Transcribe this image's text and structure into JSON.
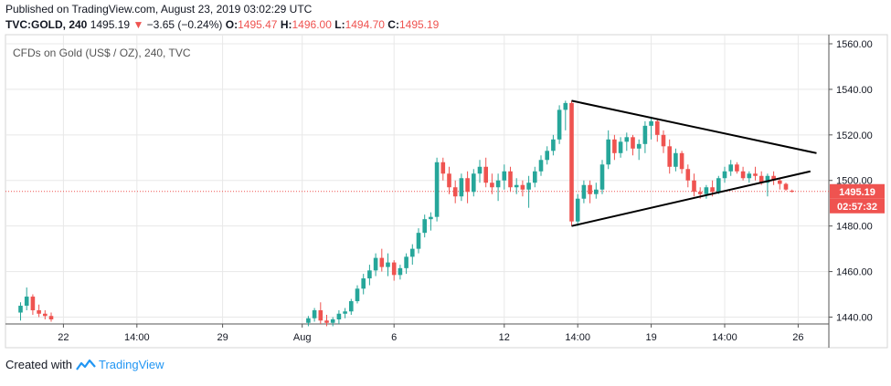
{
  "header": {
    "published": "Published on TradingView.com, August 23, 2019 03:02:29 UTC",
    "symbol": "TVC:GOLD, 240",
    "last": "1495.19",
    "arrow": "▼",
    "change": "−3.65 (−0.24%)",
    "o_label": "O:",
    "o_value": "1495.47",
    "h_label": "H:",
    "h_value": "1496.00",
    "l_label": "L:",
    "l_value": "1494.70",
    "c_label": "C:",
    "c_value": "1495.19"
  },
  "footer": {
    "created_with": "Created with",
    "brand": "TradingView"
  },
  "colors": {
    "up": "#26a69a",
    "down": "#ef5350",
    "grid": "#e8e8e8",
    "price_label": "#ef5350",
    "countdown_label": "#ef5350",
    "trendline": "#000000"
  },
  "chart_data": {
    "type": "candlestick",
    "title": "CFDs on Gold (US$ / OZ), 240, TVC",
    "ylim": [
      1437,
      1564
    ],
    "y_ticks": [
      1440,
      1460,
      1480,
      1500,
      1520,
      1540,
      1560
    ],
    "y_tick_labels": [
      "1440.00",
      "1460.00",
      "1480.00",
      "1500.00",
      "1520.00",
      "1540.00",
      "1560.00"
    ],
    "x_ticks": [
      {
        "label": "22",
        "bar": 7
      },
      {
        "label": "14:00",
        "bar": 19
      },
      {
        "label": "29",
        "bar": 33
      },
      {
        "label": "Aug",
        "bar": 46
      },
      {
        "label": "6",
        "bar": 61
      },
      {
        "label": "12",
        "bar": 79
      },
      {
        "label": "14:00",
        "bar": 91
      },
      {
        "label": "19",
        "bar": 103
      },
      {
        "label": "14:00",
        "bar": 115
      },
      {
        "label": "26",
        "bar": 127
      }
    ],
    "bar_count": 132,
    "last_price": "1495.19",
    "countdown": "02:57:32",
    "candles": [
      [
        0,
        1442.0,
        1446.5,
        1438.5,
        1445.0
      ],
      [
        1,
        1445.0,
        1453.0,
        1443.0,
        1449.0
      ],
      [
        2,
        1449.0,
        1450.0,
        1441.0,
        1443.0
      ],
      [
        3,
        1443.0,
        1445.5,
        1440.0,
        1441.5
      ],
      [
        4,
        1441.5,
        1443.0,
        1439.0,
        1440.5
      ],
      [
        5,
        1440.5,
        1442.0,
        1438.0,
        1439.0
      ],
      [
        47,
        1437.5,
        1440.5,
        1436.0,
        1439.5
      ],
      [
        48,
        1439.5,
        1444.0,
        1438.0,
        1443.0
      ],
      [
        49,
        1443.0,
        1446.5,
        1437.0,
        1438.5
      ],
      [
        50,
        1438.5,
        1441.0,
        1436.0,
        1437.5
      ],
      [
        51,
        1437.5,
        1440.0,
        1436.0,
        1439.0
      ],
      [
        52,
        1439.0,
        1443.0,
        1437.0,
        1441.5
      ],
      [
        53,
        1441.5,
        1444.0,
        1439.5,
        1442.5
      ],
      [
        54,
        1442.5,
        1448.0,
        1441.0,
        1447.0
      ],
      [
        55,
        1447.0,
        1454.0,
        1446.0,
        1452.5
      ],
      [
        56,
        1452.5,
        1459.0,
        1450.0,
        1457.0
      ],
      [
        57,
        1457.0,
        1463.0,
        1454.0,
        1460.5
      ],
      [
        58,
        1460.5,
        1468.0,
        1458.0,
        1466.0
      ],
      [
        59,
        1466.0,
        1470.0,
        1460.0,
        1462.0
      ],
      [
        60,
        1462.0,
        1468.0,
        1458.0,
        1464.0
      ],
      [
        61,
        1464.0,
        1465.0,
        1456.0,
        1458.5
      ],
      [
        62,
        1458.5,
        1463.0,
        1456.5,
        1461.5
      ],
      [
        63,
        1461.5,
        1468.0,
        1459.0,
        1466.5
      ],
      [
        64,
        1466.5,
        1472.0,
        1463.0,
        1470.0
      ],
      [
        65,
        1470.0,
        1479.0,
        1468.0,
        1477.0
      ],
      [
        66,
        1477.0,
        1485.0,
        1475.0,
        1483.0
      ],
      [
        67,
        1483.0,
        1486.0,
        1478.0,
        1484.0
      ],
      [
        68,
        1484.0,
        1510.0,
        1482.0,
        1508.0
      ],
      [
        69,
        1508.0,
        1510.0,
        1500.0,
        1503.0
      ],
      [
        70,
        1503.0,
        1506.0,
        1494.0,
        1497.0
      ],
      [
        71,
        1497.0,
        1500.0,
        1490.0,
        1493.0
      ],
      [
        72,
        1493.0,
        1503.0,
        1491.0,
        1501.0
      ],
      [
        73,
        1501.0,
        1504.0,
        1490.0,
        1495.0
      ],
      [
        74,
        1495.0,
        1505.0,
        1493.0,
        1503.0
      ],
      [
        75,
        1503.0,
        1509.0,
        1499.0,
        1506.0
      ],
      [
        76,
        1506.0,
        1510.0,
        1497.0,
        1499.0
      ],
      [
        77,
        1499.0,
        1503.0,
        1494.0,
        1497.0
      ],
      [
        78,
        1497.0,
        1503.0,
        1491.0,
        1500.0
      ],
      [
        79,
        1500.0,
        1507.0,
        1496.0,
        1504.0
      ],
      [
        80,
        1504.0,
        1506.0,
        1495.0,
        1497.0
      ],
      [
        81,
        1497.0,
        1501.0,
        1494.0,
        1498.0
      ],
      [
        82,
        1498.0,
        1500.0,
        1493.0,
        1496.0
      ],
      [
        83,
        1496.0,
        1502.0,
        1488.0,
        1499.0
      ],
      [
        84,
        1499.0,
        1506.0,
        1497.0,
        1504.0
      ],
      [
        85,
        1504.0,
        1511.0,
        1502.0,
        1509.0
      ],
      [
        86,
        1509.0,
        1515.0,
        1507.0,
        1513.0
      ],
      [
        87,
        1513.0,
        1520.0,
        1511.0,
        1518.0
      ],
      [
        88,
        1518.0,
        1533.0,
        1516.0,
        1531.0
      ],
      [
        89,
        1531.0,
        1535.0,
        1522.0,
        1534.0
      ],
      [
        90,
        1534.0,
        1535.0,
        1480.0,
        1482.0
      ],
      [
        91,
        1482.0,
        1494.0,
        1480.0,
        1492.0
      ],
      [
        92,
        1492.0,
        1500.0,
        1490.0,
        1498.0
      ],
      [
        93,
        1498.0,
        1500.0,
        1490.0,
        1494.0
      ],
      [
        94,
        1494.0,
        1499.0,
        1492.0,
        1496.0
      ],
      [
        95,
        1496.0,
        1509.0,
        1494.0,
        1507.0
      ],
      [
        96,
        1507.0,
        1522.0,
        1505.0,
        1518.0
      ],
      [
        97,
        1518.0,
        1520.0,
        1509.0,
        1512.0
      ],
      [
        98,
        1512.0,
        1519.0,
        1510.0,
        1517.0
      ],
      [
        99,
        1517.0,
        1521.0,
        1513.0,
        1519.0
      ],
      [
        100,
        1519.0,
        1520.0,
        1511.0,
        1514.0
      ],
      [
        101,
        1514.0,
        1518.0,
        1509.0,
        1516.0
      ],
      [
        102,
        1516.0,
        1526.0,
        1512.0,
        1524.0
      ],
      [
        103,
        1524.0,
        1528.0,
        1518.0,
        1526.0
      ],
      [
        104,
        1526.0,
        1527.0,
        1517.0,
        1520.0
      ],
      [
        105,
        1520.0,
        1522.0,
        1512.0,
        1515.0
      ],
      [
        106,
        1515.0,
        1518.0,
        1503.0,
        1506.0
      ],
      [
        107,
        1506.0,
        1514.0,
        1504.0,
        1512.0
      ],
      [
        108,
        1512.0,
        1513.0,
        1503.0,
        1505.0
      ],
      [
        109,
        1505.0,
        1507.0,
        1497.0,
        1500.0
      ],
      [
        110,
        1500.0,
        1503.0,
        1493.0,
        1495.0
      ],
      [
        111,
        1495.0,
        1497.0,
        1492.0,
        1494.0
      ],
      [
        112,
        1494.0,
        1498.0,
        1492.0,
        1497.0
      ],
      [
        113,
        1497.0,
        1500.0,
        1493.0,
        1495.0
      ],
      [
        114,
        1495.0,
        1502.0,
        1494.0,
        1501.0
      ],
      [
        115,
        1501.0,
        1506.0,
        1499.0,
        1504.0
      ],
      [
        116,
        1504.0,
        1509.0,
        1502.0,
        1507.0
      ],
      [
        117,
        1507.0,
        1508.0,
        1503.0,
        1504.0
      ],
      [
        118,
        1504.0,
        1506.0,
        1500.0,
        1501.0
      ],
      [
        119,
        1501.0,
        1504.0,
        1499.0,
        1503.0
      ],
      [
        120,
        1503.0,
        1506.0,
        1500.0,
        1502.0
      ],
      [
        121,
        1502.0,
        1504.0,
        1498.0,
        1499.0
      ],
      [
        122,
        1499.0,
        1503.0,
        1493.0,
        1502.0
      ],
      [
        123,
        1502.0,
        1504.0,
        1498.0,
        1500.0
      ],
      [
        124,
        1500.0,
        1501.0,
        1496.0,
        1498.5
      ],
      [
        125,
        1498.5,
        1499.0,
        1495.5,
        1496.0
      ],
      [
        126,
        1495.47,
        1496.0,
        1494.7,
        1495.19
      ]
    ],
    "trendlines": [
      {
        "name": "upper",
        "from": {
          "bar": 90,
          "price": 1535
        },
        "to": {
          "bar": 130,
          "price": 1512
        }
      },
      {
        "name": "lower",
        "from": {
          "bar": 90,
          "price": 1480
        },
        "to": {
          "bar": 129,
          "price": 1504
        }
      }
    ]
  }
}
